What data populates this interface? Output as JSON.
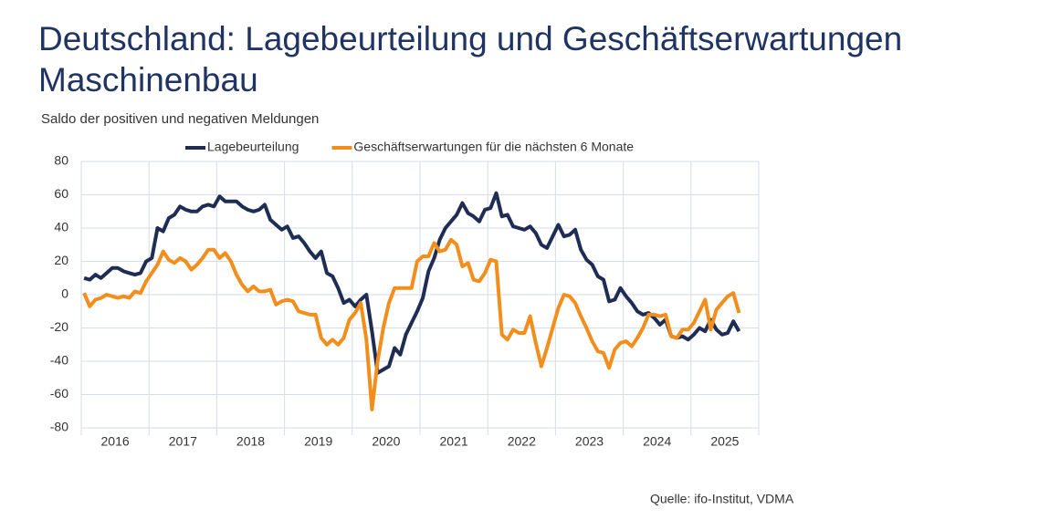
{
  "chart_data": {
    "type": "line",
    "title": [
      "Deutschland: Lagebeurteilung und Geschäftserwartungen",
      "Maschinenbau"
    ],
    "subtitle": "Saldo der positiven und negativen Meldungen",
    "source": "Quelle: ifo-Institut, VDMA",
    "categories": [
      null,
      null,
      null,
      null,
      null,
      null,
      "2016",
      null,
      null,
      null,
      null,
      null,
      null,
      null,
      null,
      null,
      null,
      null,
      "2017",
      null,
      null,
      null,
      null,
      null,
      null,
      null,
      null,
      null,
      null,
      null,
      "2018",
      null,
      null,
      null,
      null,
      null,
      null,
      null,
      null,
      null,
      null,
      null,
      "2019",
      null,
      null,
      null,
      null,
      null,
      null,
      null,
      null,
      null,
      null,
      null,
      "2020",
      null,
      null,
      null,
      null,
      null,
      null,
      null,
      null,
      null,
      null,
      null,
      "2021",
      null,
      null,
      null,
      null,
      null,
      null,
      null,
      null,
      null,
      null,
      null,
      "2022",
      null,
      null,
      null,
      null,
      null,
      null,
      null,
      null,
      null,
      null,
      null,
      "2023",
      null,
      null,
      null,
      null,
      null,
      null,
      null,
      null,
      null,
      null,
      null,
      "2024",
      null,
      null,
      null,
      null,
      null,
      null,
      null,
      null,
      null,
      null,
      null,
      "2025",
      null,
      null,
      null,
      null,
      null
    ],
    "series": [
      {
        "name": "Lagebeurteilung",
        "color": "#1f2d55",
        "values": [
          10,
          9,
          12,
          10,
          13,
          16,
          16,
          14,
          13,
          12,
          13,
          20,
          22,
          40,
          38,
          46,
          48,
          53,
          51,
          50,
          50,
          53,
          54,
          53,
          59,
          56,
          56,
          56,
          53,
          51,
          50,
          51,
          54,
          45,
          42,
          39,
          41,
          34,
          35,
          31,
          26,
          22,
          26,
          13,
          11,
          4,
          -5,
          -3,
          -7,
          -3,
          0,
          -22,
          -47,
          -45,
          -43,
          -32,
          -36,
          -24,
          -17,
          -10,
          -2,
          14,
          22,
          33,
          40,
          44,
          48,
          55,
          49,
          47,
          44,
          51,
          52,
          61,
          47,
          48,
          41,
          40,
          39,
          41,
          37,
          30,
          28,
          35,
          42,
          35,
          36,
          39,
          27,
          21,
          18,
          11,
          9,
          -4,
          -3,
          4,
          -1,
          -5,
          -10,
          -12,
          -11,
          -14,
          -18,
          -15,
          -25,
          -26,
          -25,
          -27,
          -24,
          -20,
          -22,
          -15,
          -21,
          -24,
          -23,
          -16,
          -22,
          null,
          null,
          null
        ]
      },
      {
        "name": "Geschäftserwartungen für die nächsten 6 Monate",
        "color": "#f28e1c",
        "values": [
          1,
          -7,
          -3,
          -2,
          0,
          -1,
          -2,
          -1,
          -2,
          2,
          1,
          8,
          13,
          18,
          26,
          21,
          19,
          22,
          20,
          15,
          18,
          22,
          27,
          27,
          22,
          25,
          20,
          12,
          6,
          2,
          5,
          2,
          2,
          3,
          -6,
          -4,
          -3,
          -4,
          -10,
          -11,
          -12,
          -12,
          -26,
          -30,
          -27,
          -30,
          -26,
          -15,
          -11,
          -5,
          -27,
          -69,
          -40,
          -20,
          -5,
          4,
          4,
          4,
          4,
          20,
          23,
          23,
          31,
          26,
          27,
          33,
          30,
          17,
          19,
          9,
          8,
          13,
          21,
          20,
          -24,
          -27,
          -21,
          -23,
          -23,
          -13,
          -29,
          -43,
          -32,
          -20,
          -8,
          0,
          -1,
          -5,
          -13,
          -20,
          -28,
          -34,
          -35,
          -44,
          -33,
          -29,
          -28,
          -31,
          -26,
          -20,
          -12,
          -12,
          -13,
          -12,
          -25,
          -26,
          -21,
          -21,
          -17,
          -10,
          -3,
          -21,
          -9,
          -5,
          -1,
          1,
          -11,
          null,
          null,
          null
        ]
      }
    ],
    "ylim": [
      -80,
      80
    ],
    "yticks": [
      -80,
      -60,
      -40,
      -20,
      0,
      20,
      40,
      60,
      80
    ],
    "grid": true
  }
}
